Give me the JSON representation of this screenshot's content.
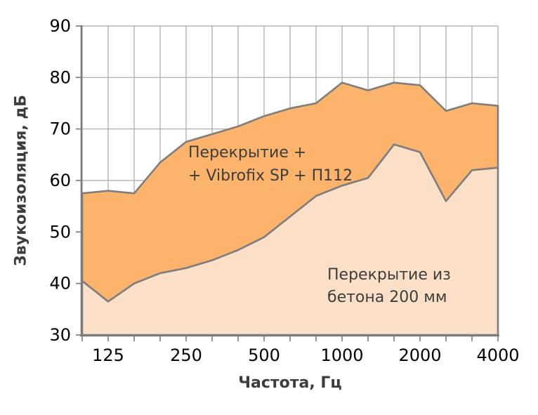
{
  "chart_data": {
    "type": "area",
    "title": "",
    "xlabel": "Частота, Гц",
    "ylabel": "Звукоизоляция, дБ",
    "x_scale": "log (third-octave bands)",
    "x": [
      100,
      125,
      160,
      200,
      250,
      315,
      400,
      500,
      630,
      800,
      1000,
      1250,
      1600,
      2000,
      2500,
      3150,
      4000
    ],
    "x_tick_labels": [
      "125",
      "250",
      "500",
      "1000",
      "2000",
      "4000"
    ],
    "x_tick_values": [
      125,
      250,
      500,
      1000,
      2000,
      4000
    ],
    "y_ticks": [
      90,
      80,
      70,
      60,
      50,
      40,
      30
    ],
    "ylim": [
      30,
      90
    ],
    "grid": true,
    "legend": "labels drawn inside areas",
    "series": [
      {
        "name": "Перекрытие + Vibrofix SP + П112",
        "values": [
          57.5,
          58,
          57.5,
          63.5,
          67.5,
          69,
          70.5,
          72.5,
          74,
          75,
          79,
          77.5,
          79,
          78.5,
          73.5,
          75,
          74.5
        ],
        "fill": "#fcb36c",
        "stroke": "#7e7e7e"
      },
      {
        "name": "Перекрытие из бетона 200 мм",
        "values": [
          40.5,
          36.5,
          40,
          42,
          43,
          44.5,
          46.5,
          49,
          53,
          57,
          59,
          60.5,
          67,
          65.5,
          56,
          62,
          62.5
        ],
        "fill": "#fbdfc6",
        "stroke": "#7e7e7e"
      }
    ],
    "annotations": [
      {
        "lines": [
          "Перекрытие +",
          "+ Vibrofix SP + П112"
        ]
      },
      {
        "lines": [
          "Перекрытие из",
          "бетона 200 мм"
        ]
      }
    ],
    "colors": {
      "grid": "#a8a8a8",
      "axis": "#7a7a7a",
      "tick_label": "#000000",
      "axis_title": "#3d3d3d",
      "annotation_text": "#3d3d3d"
    }
  }
}
